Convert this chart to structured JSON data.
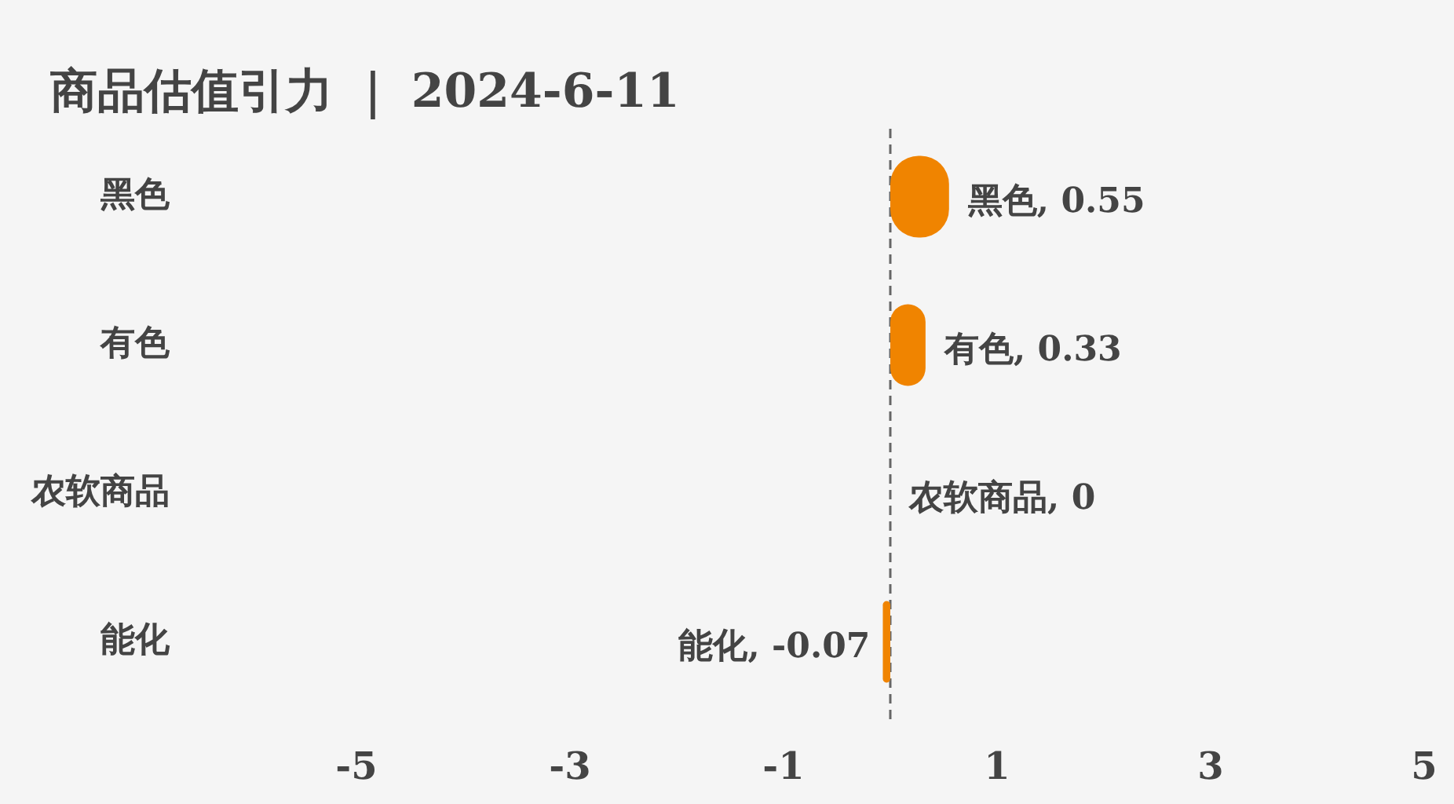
{
  "chart_data": {
    "type": "bar",
    "orientation": "horizontal",
    "title": "商品估值引力 ｜ 2024-6-11",
    "categories": [
      "黑色",
      "有色",
      "农软商品",
      "能化"
    ],
    "values": [
      0.55,
      0.33,
      0,
      -0.07
    ],
    "value_labels": [
      "黑色, 0.55",
      "有色, 0.33",
      "农软商品, 0",
      "能化, -0.07"
    ],
    "color": "#f08400",
    "xlim": [
      -5,
      5
    ],
    "xticks": [
      -5,
      -3,
      -1,
      1,
      3,
      5
    ],
    "ref_lines": [
      {
        "axis": "x",
        "value": 0,
        "color": "#666666",
        "line_style": "dashed"
      }
    ],
    "grid": false
  }
}
